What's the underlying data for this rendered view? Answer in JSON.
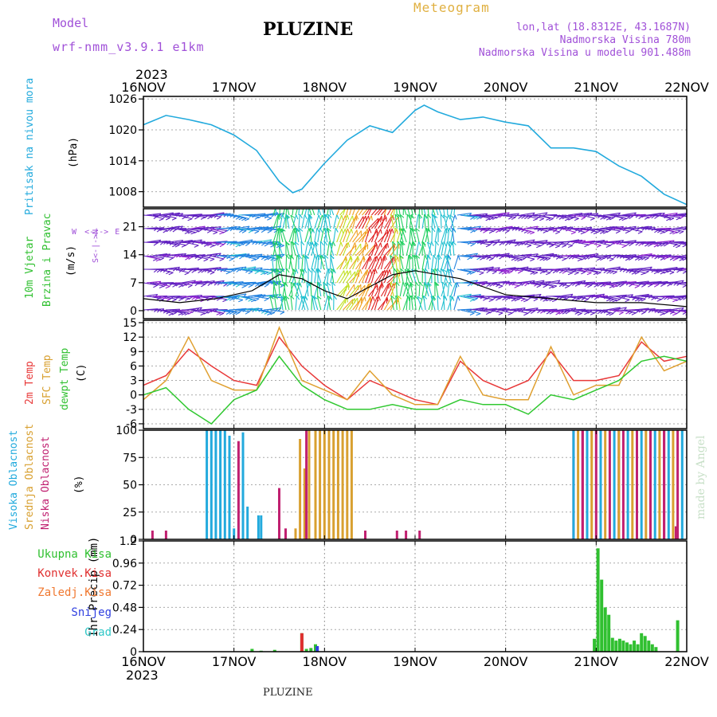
{
  "header": {
    "model_label": "Model",
    "model_name": "wrf-nmm_v3.9.1 e1km",
    "station": "PLUZINE",
    "product": "Meteogram",
    "lonlat": "lon,lat (18.8312E, 43.1687N)",
    "elevation": "Nadmorska Visina 780m",
    "model_elevation": "Nadmorska Visina u modelu 901.488m",
    "year_top": "2023",
    "year_bottom": "2023"
  },
  "footer": {
    "station": "PLUZINE",
    "credit": "made by Angel"
  },
  "colors": {
    "pressure": "#22aadd",
    "temp2m": "#e83838",
    "sfc": "#e0a030",
    "dewpt": "#30c830",
    "cloud_high": "#22aadd",
    "cloud_mid": "#d8a030",
    "cloud_low": "#c02070",
    "rain_total": "#30c030",
    "rain_conv": "#e03030",
    "snow": "#3040e0"
  },
  "panels": {
    "pressure": {
      "label": "Pritisak na nivou mora",
      "unit": "(hPa)"
    },
    "wind": {
      "label1": "10m Vjetar",
      "label2": "Brzina i Pravac",
      "unit": "(m/s)",
      "compass": "N",
      "compass_s": "S",
      "compass_w": "W",
      "compass_e": "E"
    },
    "temp": {
      "label1": "2m Temp",
      "label2": "SFC Temp",
      "label3": "dewpt Temp",
      "unit": "(C)"
    },
    "cloud": {
      "label1": "Visoka Oblacnost",
      "label2": "Srednja Oblacnost",
      "label3": "Niska Oblacnost",
      "unit": "(%)"
    },
    "precip": {
      "unit": "1hr Precip (mm)",
      "legend": [
        "Ukupna Kisa",
        "Konvek.Kisa",
        "Zaledj.Kisa",
        "Snijeg",
        "Grad"
      ],
      "legend_colors": [
        "#30c030",
        "#e03030",
        "#f07830",
        "#3040e0",
        "#30c8c8"
      ]
    }
  },
  "chart_data": [
    {
      "type": "line",
      "title": "",
      "ylabel": "(hPa)",
      "x_ticks": [
        "16NOV",
        "17NOV",
        "18NOV",
        "19NOV",
        "20NOV",
        "21NOV",
        "22NOV"
      ],
      "yticks": [
        1008,
        1014,
        1020,
        1026
      ],
      "ylim": [
        1005,
        1026.5
      ],
      "series": [
        {
          "name": "Pritisak na nivou mora",
          "x": [
            0,
            0.25,
            0.5,
            0.75,
            1.0,
            1.25,
            1.5,
            1.65,
            1.75,
            2.0,
            2.25,
            2.5,
            2.75,
            3.0,
            3.1,
            3.25,
            3.5,
            3.75,
            4.0,
            4.25,
            4.5,
            4.75,
            5.0,
            5.25,
            5.5,
            5.75,
            6.0
          ],
          "values": [
            1021.0,
            1022.8,
            1022.0,
            1021.0,
            1019.0,
            1016.0,
            1010.0,
            1007.8,
            1008.5,
            1013.5,
            1018.0,
            1020.8,
            1019.5,
            1023.8,
            1024.8,
            1023.5,
            1022.0,
            1022.5,
            1021.5,
            1020.8,
            1016.5,
            1016.5,
            1015.8,
            1013.0,
            1011.0,
            1007.5,
            1005.5
          ]
        }
      ]
    },
    {
      "type": "scatter",
      "title": "",
      "ylabel": "(m/s)",
      "yticks": [
        0,
        7,
        14,
        21
      ],
      "ylim": [
        -2,
        25.5
      ],
      "series": [
        {
          "name": "",
          "x": [
            0,
            0.4,
            0.8,
            1.2,
            1.5,
            1.75,
            2.0,
            2.25,
            2.5,
            2.75,
            3.0,
            3.5,
            4.0,
            4.5,
            5.0,
            5.5,
            6.0
          ],
          "values": [
            3,
            2,
            3,
            5,
            9,
            8,
            5,
            3,
            6,
            9,
            10,
            8,
            4,
            3,
            2,
            2,
            1
          ]
        }
      ]
    },
    {
      "type": "line",
      "title": "",
      "ylabel": "(C)",
      "yticks": [
        -6,
        -3,
        0,
        3,
        6,
        9,
        12,
        15
      ],
      "ylim": [
        -7,
        15.5
      ],
      "series": [
        {
          "name": "2m Temp",
          "x": [
            0,
            0.25,
            0.5,
            0.75,
            1.0,
            1.25,
            1.5,
            1.75,
            2.0,
            2.25,
            2.5,
            2.75,
            3.0,
            3.25,
            3.5,
            3.75,
            4.0,
            4.25,
            4.5,
            4.75,
            5.0,
            5.25,
            5.5,
            5.75,
            6.0
          ],
          "values": [
            2,
            4,
            9.5,
            6,
            3,
            2,
            12,
            6,
            2,
            -1,
            3,
            1,
            -1,
            -2,
            7,
            3,
            1,
            3,
            9,
            3,
            3,
            4,
            11,
            7,
            8
          ]
        },
        {
          "name": "SFC Temp",
          "x": [
            0,
            0.25,
            0.5,
            0.75,
            1.0,
            1.25,
            1.5,
            1.75,
            2.0,
            2.25,
            2.5,
            2.75,
            3.0,
            3.25,
            3.5,
            3.75,
            4.0,
            4.25,
            4.5,
            4.75,
            5.0,
            5.25,
            5.5,
            5.75,
            6.0
          ],
          "values": [
            -1,
            3,
            12,
            3,
            1,
            1,
            14,
            3,
            1,
            -1,
            5,
            0,
            -2,
            -2,
            8,
            0,
            -1,
            -1,
            10,
            0,
            2,
            2,
            12,
            5,
            7
          ]
        },
        {
          "name": "dewpt Temp",
          "x": [
            0,
            0.25,
            0.5,
            0.75,
            1.0,
            1.25,
            1.5,
            1.75,
            2.0,
            2.25,
            2.5,
            2.75,
            3.0,
            3.25,
            3.5,
            3.75,
            4.0,
            4.25,
            4.5,
            4.75,
            5.0,
            5.25,
            5.5,
            5.75,
            6.0
          ],
          "values": [
            0,
            1.5,
            -3,
            -6,
            -1,
            1,
            8,
            2,
            -1,
            -3,
            -3,
            -2,
            -3,
            -3,
            -1,
            -2,
            -2,
            -4,
            0,
            -1,
            1,
            3,
            7,
            8,
            7
          ]
        }
      ]
    },
    {
      "type": "bar",
      "title": "",
      "ylabel": "(%)",
      "yticks": [
        0,
        25,
        50,
        75,
        100
      ],
      "ylim": [
        0,
        100
      ],
      "series": [
        {
          "name": "Visoka Oblacnost",
          "x": [
            0.7,
            0.75,
            0.8,
            0.85,
            0.9,
            0.95,
            1.0,
            1.1,
            1.15,
            1.27,
            1.3
          ],
          "values": [
            100,
            100,
            100,
            100,
            100,
            95,
            10,
            98,
            30,
            22,
            22
          ]
        },
        {
          "name": "Srednja Oblacnost",
          "x": [
            1.68,
            1.73,
            1.78,
            1.83,
            1.9,
            1.95,
            2.0,
            2.05,
            2.1,
            2.15,
            2.2,
            2.25,
            2.3
          ],
          "values": [
            10,
            92,
            65,
            100,
            100,
            100,
            100,
            100,
            100,
            100,
            100,
            100,
            100
          ]
        },
        {
          "name": "Niska Oblacnost",
          "x": [
            0.1,
            0.25,
            1.05,
            1.5,
            1.57,
            1.8,
            2.45,
            2.8,
            2.9,
            3.05,
            4.75,
            4.85,
            5.25,
            5.75,
            5.88
          ],
          "values": [
            8,
            8,
            90,
            47,
            10,
            100,
            8,
            8,
            8,
            8,
            100,
            100,
            100,
            100,
            12
          ]
        },
        {
          "name": "",
          "x": [
            4.75,
            4.8,
            4.85,
            4.9,
            4.95,
            5.0,
            5.05,
            5.1,
            5.15,
            5.2,
            5.25,
            5.3,
            5.35,
            5.4,
            5.45,
            5.5,
            5.55,
            5.6,
            5.65,
            5.7,
            5.75,
            5.8,
            5.85,
            5.9,
            5.95
          ],
          "values": [
            100,
            100,
            100,
            100,
            100,
            100,
            100,
            100,
            100,
            100,
            100,
            100,
            100,
            100,
            100,
            100,
            100,
            100,
            100,
            100,
            100,
            100,
            100,
            100,
            100
          ]
        }
      ]
    },
    {
      "type": "bar",
      "title": "",
      "ylabel": "1hr Precip (mm)",
      "yticks": [
        0,
        0.24,
        0.48,
        0.72,
        0.96,
        1.2
      ],
      "ylim": [
        0,
        1.2
      ],
      "series": [
        {
          "name": "Ukupna Kisa",
          "x": [
            1.2,
            1.3,
            1.45,
            1.75,
            1.8,
            1.85,
            1.9,
            4.98,
            5.02,
            5.06,
            5.1,
            5.14,
            5.18,
            5.22,
            5.26,
            5.3,
            5.34,
            5.38,
            5.42,
            5.46,
            5.5,
            5.54,
            5.58,
            5.62,
            5.66,
            5.9
          ],
          "values": [
            0.03,
            0.01,
            0.02,
            0.2,
            0.03,
            0.04,
            0.08,
            0.14,
            1.12,
            0.78,
            0.48,
            0.4,
            0.15,
            0.12,
            0.14,
            0.12,
            0.1,
            0.08,
            0.12,
            0.08,
            0.2,
            0.17,
            0.12,
            0.08,
            0.05,
            0.34
          ]
        },
        {
          "name": "Konvek.Kisa",
          "x": [
            1.75
          ],
          "values": [
            0.2
          ]
        },
        {
          "name": "Snijeg",
          "x": [
            1.92
          ],
          "values": [
            0.06
          ]
        }
      ]
    }
  ]
}
